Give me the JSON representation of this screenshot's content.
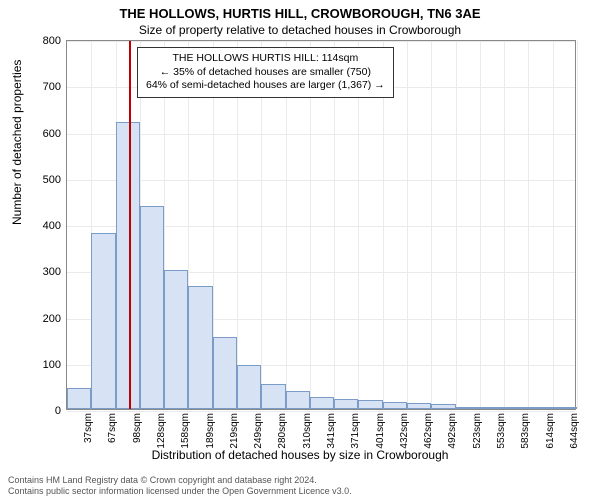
{
  "title": "THE HOLLOWS, HURTIS HILL, CROWBOROUGH, TN6 3AE",
  "subtitle": "Size of property relative to detached houses in Crowborough",
  "ylabel": "Number of detached properties",
  "xlabel": "Distribution of detached houses by size in Crowborough",
  "chart": {
    "type": "histogram",
    "ylim": [
      0,
      800
    ],
    "yticks": [
      0,
      100,
      200,
      300,
      400,
      500,
      600,
      700,
      800
    ],
    "xticks": [
      "37sqm",
      "67sqm",
      "98sqm",
      "128sqm",
      "158sqm",
      "189sqm",
      "219sqm",
      "249sqm",
      "280sqm",
      "310sqm",
      "341sqm",
      "371sqm",
      "401sqm",
      "432sqm",
      "462sqm",
      "492sqm",
      "523sqm",
      "553sqm",
      "583sqm",
      "614sqm",
      "644sqm"
    ],
    "values": [
      45,
      380,
      620,
      440,
      300,
      265,
      155,
      95,
      55,
      40,
      25,
      22,
      20,
      15,
      12,
      10,
      5,
      3,
      2,
      2,
      1
    ],
    "bar_color": "#d7e3f4",
    "bar_border": "#7a9cc6",
    "grid_color": "#eaeaea",
    "background": "#ffffff",
    "axis_color": "#888888",
    "marker_value_sqm": 114,
    "marker_color": "#c00000",
    "bar_width_ratio": 1.0
  },
  "annotation": {
    "lines": [
      "THE HOLLOWS HURTIS HILL: 114sqm",
      "← 35% of detached houses are smaller (750)",
      "64% of semi-detached houses are larger (1,367) →"
    ]
  },
  "footer": {
    "line1": "Contains HM Land Registry data © Crown copyright and database right 2024.",
    "line2": "Contains public sector information licensed under the Open Government Licence v3.0."
  }
}
